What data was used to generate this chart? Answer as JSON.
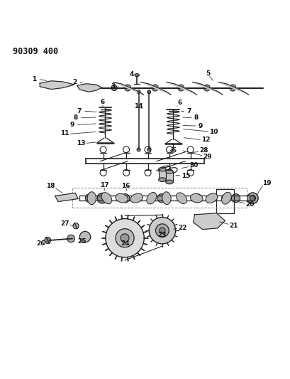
{
  "title": "90309 400",
  "bg_color": "#ffffff",
  "line_color": "#222222",
  "label_color": "#111111",
  "fig_width": 4.09,
  "fig_height": 5.33,
  "dpi": 100
}
